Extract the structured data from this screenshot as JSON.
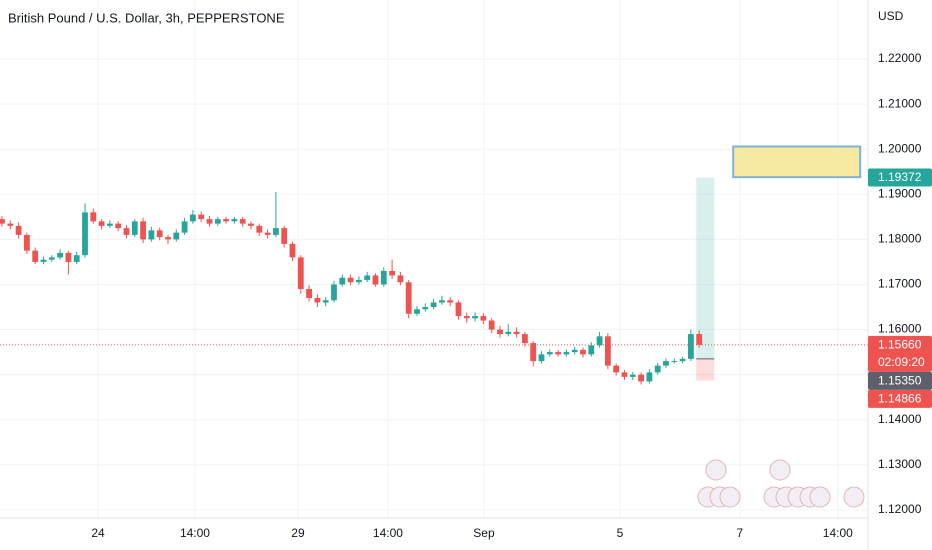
{
  "chart_data": {
    "type": "candlestick",
    "title": "British Pound / U.S. Dollar, 3h, PEPPERSTONE",
    "y_axis_label": "USD",
    "up_color": "#26a69a",
    "down_color": "#ef5350",
    "grid": true,
    "open": [
      1.1845,
      1.1835,
      1.183,
      1.181,
      1.1775,
      1.175,
      1.1755,
      1.176,
      1.177,
      1.175,
      1.1765,
      1.186,
      1.184,
      1.183,
      1.1835,
      1.1825,
      1.181,
      1.184,
      1.18,
      1.182,
      1.1805,
      1.18,
      1.1815,
      1.184,
      1.1855,
      1.1845,
      1.1835,
      1.1845,
      1.184,
      1.1845,
      1.1835,
      1.183,
      1.1815,
      1.181,
      1.1825,
      1.179,
      1.176,
      1.169,
      1.167,
      1.166,
      1.1665,
      1.17,
      1.1715,
      1.1705,
      1.171,
      1.172,
      1.17,
      1.173,
      1.172,
      1.1705,
      1.1635,
      1.1645,
      1.165,
      1.166,
      1.1665,
      1.166,
      1.163,
      1.1625,
      1.163,
      1.162,
      1.16,
      1.159,
      1.1595,
      1.159,
      1.157,
      1.153,
      1.1545,
      1.155,
      1.1545,
      1.155,
      1.1555,
      1.1545,
      1.1565,
      1.1585,
      1.152,
      1.1505,
      1.1495,
      1.15,
      1.1485,
      1.1505,
      1.152,
      1.153,
      1.153,
      1.1535,
      1.159
    ],
    "high": [
      1.1852,
      1.1842,
      1.1838,
      1.1815,
      1.1782,
      1.1762,
      1.1765,
      1.1778,
      1.1775,
      1.1772,
      1.188,
      1.1868,
      1.1845,
      1.1842,
      1.184,
      1.1832,
      1.1845,
      1.1848,
      1.1828,
      1.1826,
      1.181,
      1.1822,
      1.1848,
      1.1865,
      1.1862,
      1.1852,
      1.185,
      1.185,
      1.185,
      1.185,
      1.184,
      1.1835,
      1.1822,
      1.1905,
      1.183,
      1.1795,
      1.1765,
      1.1698,
      1.1678,
      1.1672,
      1.1708,
      1.1722,
      1.1722,
      1.1718,
      1.1728,
      1.1725,
      1.1738,
      1.1755,
      1.1728,
      1.171,
      1.1652,
      1.1658,
      1.1668,
      1.1675,
      1.1672,
      1.1665,
      1.1638,
      1.1638,
      1.1636,
      1.1625,
      1.1608,
      1.1612,
      1.1605,
      1.1595,
      1.1575,
      1.1552,
      1.1556,
      1.1555,
      1.1556,
      1.1562,
      1.156,
      1.1572,
      1.1595,
      1.1592,
      1.1525,
      1.151,
      1.1506,
      1.1505,
      1.1512,
      1.1526,
      1.1536,
      1.1536,
      1.154,
      1.16,
      1.1598
    ],
    "low": [
      1.1828,
      1.1822,
      1.1802,
      1.1768,
      1.1745,
      1.1745,
      1.175,
      1.1755,
      1.1722,
      1.1745,
      1.176,
      1.1835,
      1.1822,
      1.1825,
      1.1818,
      1.1802,
      1.1805,
      1.1792,
      1.1795,
      1.1798,
      1.179,
      1.1795,
      1.181,
      1.1835,
      1.1838,
      1.1828,
      1.183,
      1.1835,
      1.1835,
      1.1828,
      1.1822,
      1.1808,
      1.1802,
      1.1805,
      1.1782,
      1.1752,
      1.168,
      1.1662,
      1.165,
      1.1652,
      1.166,
      1.1695,
      1.1698,
      1.17,
      1.1705,
      1.1695,
      1.1695,
      1.1712,
      1.1698,
      1.1625,
      1.163,
      1.164,
      1.1645,
      1.1655,
      1.1652,
      1.1622,
      1.1615,
      1.1618,
      1.1612,
      1.1592,
      1.1582,
      1.1585,
      1.1582,
      1.1562,
      1.1518,
      1.1525,
      1.154,
      1.154,
      1.154,
      1.1545,
      1.1538,
      1.154,
      1.156,
      1.1512,
      1.1498,
      1.1488,
      1.1488,
      1.1478,
      1.148,
      1.15,
      1.1515,
      1.1525,
      1.1525,
      1.153,
      1.156
    ],
    "close": [
      1.1835,
      1.183,
      1.181,
      1.1775,
      1.175,
      1.1755,
      1.176,
      1.177,
      1.175,
      1.1765,
      1.186,
      1.184,
      1.183,
      1.1835,
      1.1825,
      1.181,
      1.184,
      1.18,
      1.182,
      1.1805,
      1.18,
      1.1815,
      1.184,
      1.1855,
      1.1845,
      1.1835,
      1.1845,
      1.184,
      1.1845,
      1.1835,
      1.183,
      1.1815,
      1.181,
      1.1825,
      1.179,
      1.176,
      1.169,
      1.167,
      1.166,
      1.1665,
      1.17,
      1.1715,
      1.1705,
      1.171,
      1.172,
      1.17,
      1.173,
      1.172,
      1.1705,
      1.1635,
      1.1645,
      1.165,
      1.166,
      1.1665,
      1.166,
      1.163,
      1.1625,
      1.163,
      1.162,
      1.16,
      1.159,
      1.1595,
      1.159,
      1.157,
      1.153,
      1.1545,
      1.155,
      1.1545,
      1.155,
      1.1555,
      1.1545,
      1.1565,
      1.1585,
      1.152,
      1.1505,
      1.1495,
      1.15,
      1.1485,
      1.1505,
      1.152,
      1.153,
      1.153,
      1.1535,
      1.159,
      1.1566
    ],
    "xlim": [
      -0.24,
      104.34
    ],
    "xticks": [
      {
        "value": 11.57,
        "label": "24"
      },
      {
        "value": 23.25,
        "label": "14:00"
      },
      {
        "value": 35.66,
        "label": "29"
      },
      {
        "value": 46.5,
        "label": "14:00"
      },
      {
        "value": 58.07,
        "label": "Sep"
      },
      {
        "value": 74.46,
        "label": "5"
      },
      {
        "value": 88.9,
        "label": "7"
      },
      {
        "value": 100.7,
        "label": "14:00"
      }
    ],
    "ylim": [
      1.1182,
      1.2331
    ],
    "yticks": [
      {
        "value": 1.12,
        "label": "1.12000"
      },
      {
        "value": 1.13,
        "label": "1.13000"
      },
      {
        "value": 1.14,
        "label": "1.14000"
      },
      {
        "value": 1.15,
        "label": "1.15000"
      },
      {
        "value": 1.16,
        "label": "1.16000"
      },
      {
        "value": 1.17,
        "label": "1.17000"
      },
      {
        "value": 1.18,
        "label": "1.18000"
      },
      {
        "value": 1.19,
        "label": "1.19000"
      },
      {
        "value": 1.2,
        "label": "1.20000"
      },
      {
        "value": 1.21,
        "label": "1.21000"
      },
      {
        "value": 1.22,
        "label": "1.22000"
      }
    ],
    "rectangle": {
      "x": [
        88.1,
        103.4
      ],
      "y": [
        1.1938,
        1.2006
      ],
      "color": "#f7e9a0",
      "border": "#7fb2d6"
    },
    "position": {
      "target": 1.19372,
      "entry": 1.1535,
      "stop": 1.14866
    },
    "price_labels": [
      {
        "value": 1.19372,
        "color": "#26a69a"
      },
      {
        "value": 1.1566,
        "label": "1.15660",
        "countdown": "02:09:20",
        "color": "#ef5350"
      },
      {
        "value": 1.1535,
        "label": "1.15350",
        "color": "#5d606b"
      },
      {
        "value": 1.14866,
        "color": "#ef5350"
      }
    ]
  }
}
